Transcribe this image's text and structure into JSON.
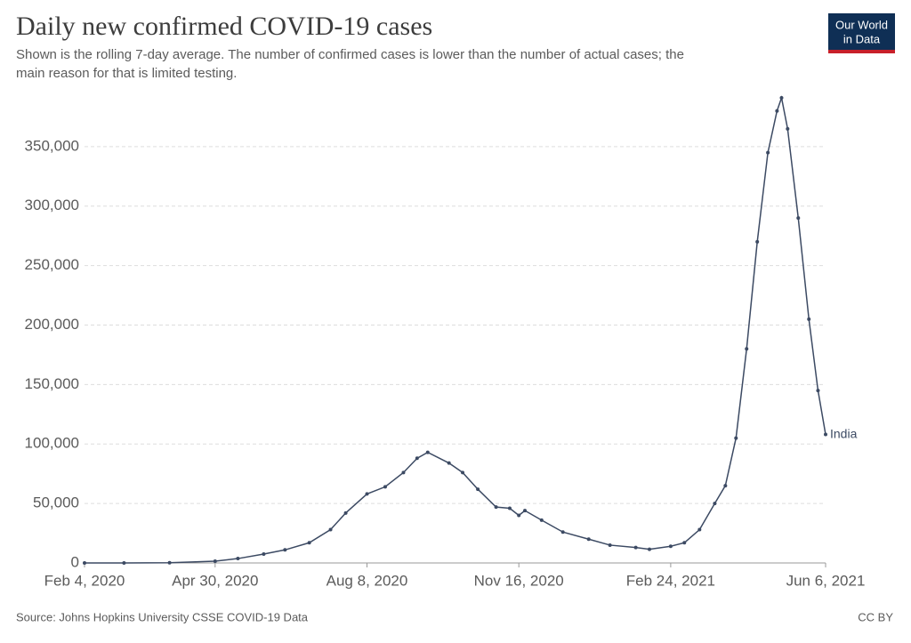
{
  "chart_data": {
    "type": "line",
    "title": "Daily new confirmed COVID-19 cases",
    "subtitle": [
      "Shown is the rolling 7-day average. The number of confirmed cases is lower than the number of actual cases; the",
      "main reason for that is limited testing."
    ],
    "source": "Source: Johns Hopkins University CSSE COVID-19 Data",
    "license": "CC BY",
    "logo": [
      "Our World",
      "in Data"
    ],
    "x": [
      "2020-02-04",
      "2020-03-01",
      "2020-03-31",
      "2020-04-30",
      "2020-05-15",
      "2020-06-01",
      "2020-06-15",
      "2020-07-01",
      "2020-07-15",
      "2020-07-25",
      "2020-08-08",
      "2020-08-20",
      "2020-09-01",
      "2020-09-10",
      "2020-09-17",
      "2020-10-01",
      "2020-10-10",
      "2020-10-20",
      "2020-11-01",
      "2020-11-10",
      "2020-11-16",
      "2020-11-20",
      "2020-12-01",
      "2020-12-15",
      "2021-01-01",
      "2021-01-15",
      "2021-02-01",
      "2021-02-10",
      "2021-02-24",
      "2021-03-05",
      "2021-03-15",
      "2021-03-25",
      "2021-04-01",
      "2021-04-08",
      "2021-04-15",
      "2021-04-22",
      "2021-04-29",
      "2021-05-05",
      "2021-05-08",
      "2021-05-12",
      "2021-05-19",
      "2021-05-26",
      "2021-06-01",
      "2021-06-06"
    ],
    "series": [
      {
        "name": "India",
        "color": "#3c4a63",
        "values": [
          0,
          0,
          150,
          1500,
          3700,
          7500,
          11000,
          17000,
          28000,
          42000,
          58000,
          64000,
          76000,
          88000,
          93000,
          84000,
          76000,
          62000,
          47000,
          46000,
          40000,
          44000,
          36000,
          26000,
          20000,
          15000,
          13000,
          11500,
          14000,
          17000,
          28000,
          50000,
          65000,
          105000,
          180000,
          270000,
          345000,
          380000,
          391000,
          365000,
          290000,
          205000,
          145000,
          108000
        ]
      }
    ],
    "xlim": [
      "2020-02-04",
      "2021-06-06"
    ],
    "xticks": [
      {
        "value": "2020-02-04",
        "label": "Feb 4, 2020"
      },
      {
        "value": "2020-04-30",
        "label": "Apr 30, 2020"
      },
      {
        "value": "2020-08-08",
        "label": "Aug 8, 2020"
      },
      {
        "value": "2020-11-16",
        "label": "Nov 16, 2020"
      },
      {
        "value": "2021-02-24",
        "label": "Feb 24, 2021"
      },
      {
        "value": "2021-06-06",
        "label": "Jun 6, 2021"
      }
    ],
    "ylim": [
      0,
      400000
    ],
    "yticks": [
      0,
      {
        "value": 50000,
        "label": "50,000"
      },
      {
        "value": 100000,
        "label": "100,000"
      },
      {
        "value": 150000,
        "label": "150,000"
      },
      {
        "value": 200000,
        "label": "200,000"
      },
      {
        "value": 250000,
        "label": "250,000"
      },
      {
        "value": 300000,
        "label": "300,000"
      },
      {
        "value": 350000,
        "label": "350,000"
      }
    ],
    "grid": true
  }
}
